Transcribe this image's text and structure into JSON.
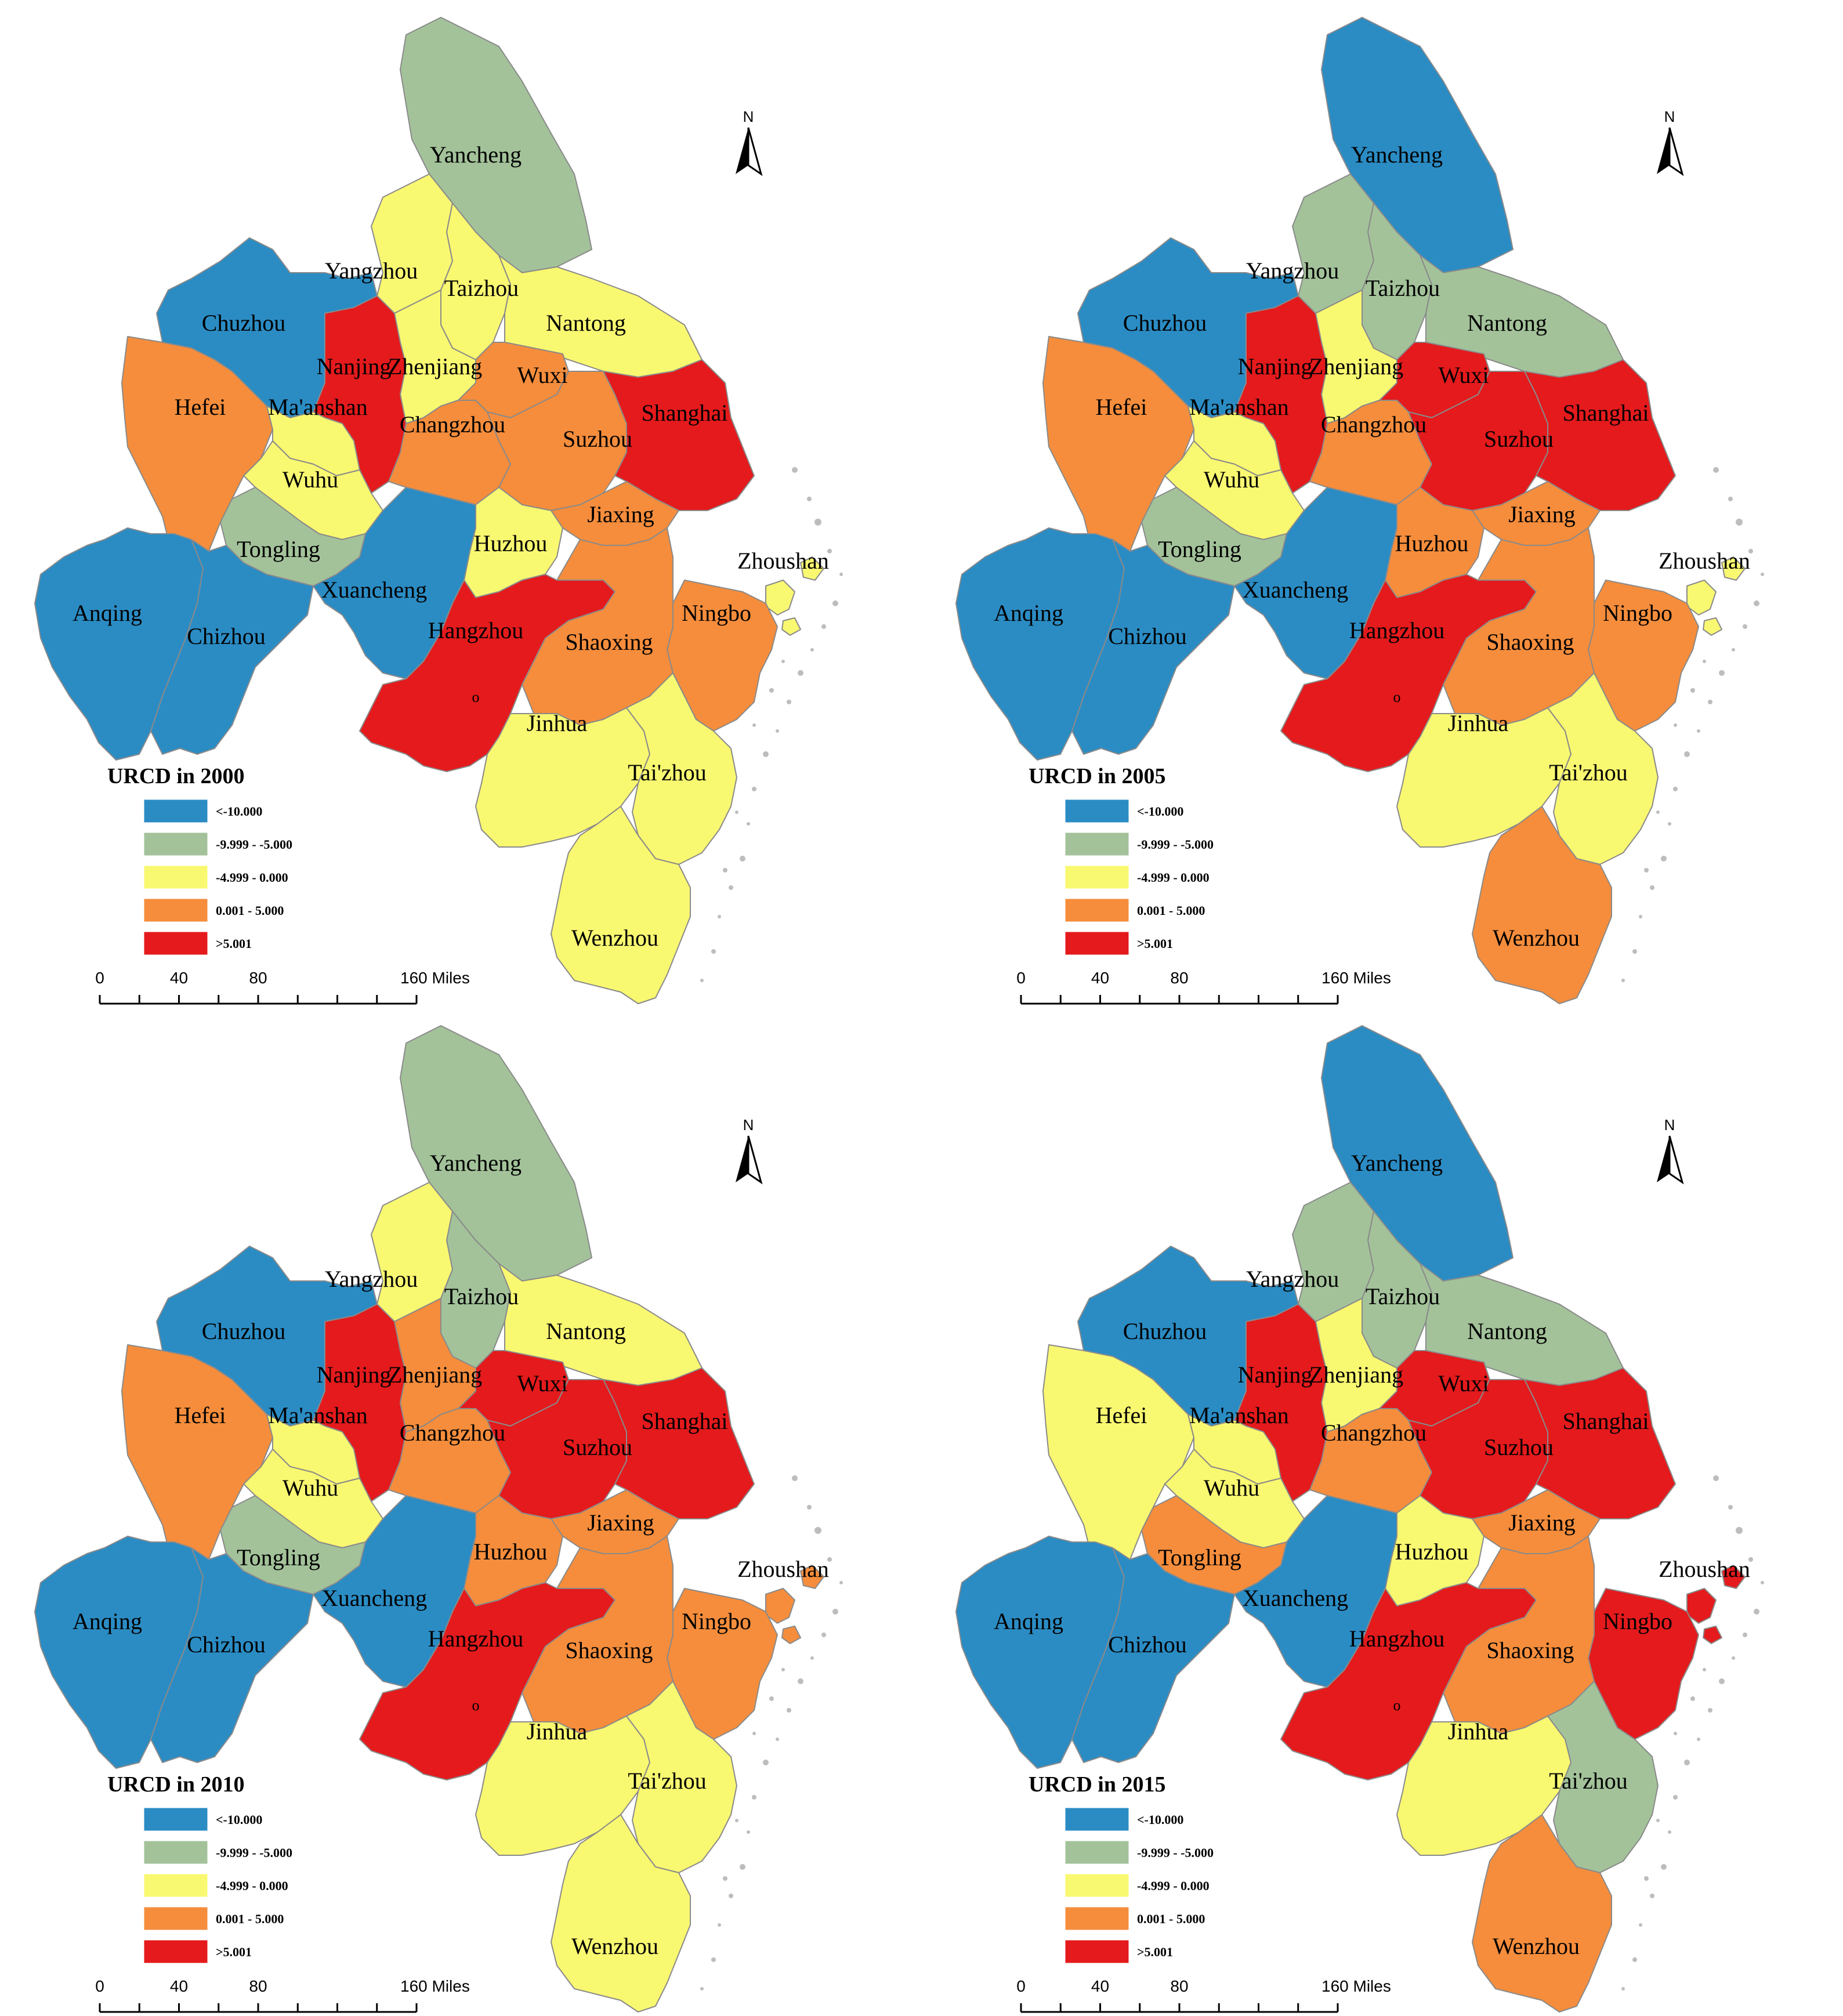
{
  "colors": {
    "c1": "#2b8cc4",
    "c2": "#a3c29a",
    "c3": "#f9f871",
    "c4": "#f58d3c",
    "c5": "#e41a1c"
  },
  "legend": {
    "classes": [
      {
        "key": "c1",
        "label": "<-10.000"
      },
      {
        "key": "c2",
        "label": "-9.999 - -5.000"
      },
      {
        "key": "c3",
        "label": "-4.999 - 0.000"
      },
      {
        "key": "c4",
        "label": "0.001 - 5.000"
      },
      {
        "key": "c5",
        "label": ">5.001"
      }
    ]
  },
  "scale": {
    "ticks": [
      "0",
      "40",
      "80",
      "160 Miles"
    ]
  },
  "north_label": "N",
  "marker_label": "o",
  "cities": [
    "Yancheng",
    "Yangzhou",
    "Taizhou",
    "Nantong",
    "Chuzhou",
    "Nanjing",
    "Zhenjiang",
    "Wuxi",
    "Hefei",
    "Ma'anshan",
    "Changzhou",
    "Suzhou",
    "Shanghai",
    "Wuhu",
    "Tongling",
    "Jiaxing",
    "Huzhou",
    "Zhoushan",
    "Anqing",
    "Chizhou",
    "Xuancheng",
    "Hangzhou",
    "Ningbo",
    "Shaoxing",
    "Jinhua",
    "Tai'zhou",
    "Wenzhou"
  ],
  "maps": [
    {
      "title": "URCD in 2000",
      "classes": {
        "Yancheng": "c2",
        "Yangzhou": "c3",
        "Taizhou": "c3",
        "Nantong": "c3",
        "Chuzhou": "c1",
        "Nanjing": "c5",
        "Zhenjiang": "c3",
        "Wuxi": "c4",
        "Hefei": "c4",
        "Ma'anshan": "c3",
        "Changzhou": "c4",
        "Suzhou": "c4",
        "Shanghai": "c5",
        "Wuhu": "c3",
        "Tongling": "c2",
        "Jiaxing": "c4",
        "Huzhou": "c3",
        "Zhoushan": "c3",
        "Anqing": "c1",
        "Chizhou": "c1",
        "Xuancheng": "c1",
        "Hangzhou": "c5",
        "Ningbo": "c4",
        "Shaoxing": "c4",
        "Jinhua": "c3",
        "Tai'zhou": "c3",
        "Wenzhou": "c3"
      }
    },
    {
      "title": "URCD in 2005",
      "classes": {
        "Yancheng": "c1",
        "Yangzhou": "c2",
        "Taizhou": "c2",
        "Nantong": "c2",
        "Chuzhou": "c1",
        "Nanjing": "c5",
        "Zhenjiang": "c3",
        "Wuxi": "c5",
        "Hefei": "c4",
        "Ma'anshan": "c3",
        "Changzhou": "c4",
        "Suzhou": "c5",
        "Shanghai": "c5",
        "Wuhu": "c3",
        "Tongling": "c2",
        "Jiaxing": "c4",
        "Huzhou": "c4",
        "Zhoushan": "c3",
        "Anqing": "c1",
        "Chizhou": "c1",
        "Xuancheng": "c1",
        "Hangzhou": "c5",
        "Ningbo": "c4",
        "Shaoxing": "c4",
        "Jinhua": "c3",
        "Tai'zhou": "c3",
        "Wenzhou": "c4"
      }
    },
    {
      "title": "URCD in 2010",
      "classes": {
        "Yancheng": "c2",
        "Yangzhou": "c3",
        "Taizhou": "c2",
        "Nantong": "c3",
        "Chuzhou": "c1",
        "Nanjing": "c5",
        "Zhenjiang": "c4",
        "Wuxi": "c5",
        "Hefei": "c4",
        "Ma'anshan": "c3",
        "Changzhou": "c4",
        "Suzhou": "c5",
        "Shanghai": "c5",
        "Wuhu": "c3",
        "Tongling": "c2",
        "Jiaxing": "c4",
        "Huzhou": "c4",
        "Zhoushan": "c4",
        "Anqing": "c1",
        "Chizhou": "c1",
        "Xuancheng": "c1",
        "Hangzhou": "c5",
        "Ningbo": "c4",
        "Shaoxing": "c4",
        "Jinhua": "c3",
        "Tai'zhou": "c3",
        "Wenzhou": "c3"
      }
    },
    {
      "title": "URCD in 2015",
      "classes": {
        "Yancheng": "c1",
        "Yangzhou": "c2",
        "Taizhou": "c2",
        "Nantong": "c2",
        "Chuzhou": "c1",
        "Nanjing": "c5",
        "Zhenjiang": "c3",
        "Wuxi": "c5",
        "Hefei": "c3",
        "Ma'anshan": "c3",
        "Changzhou": "c4",
        "Suzhou": "c5",
        "Shanghai": "c5",
        "Wuhu": "c3",
        "Tongling": "c4",
        "Jiaxing": "c4",
        "Huzhou": "c3",
        "Zhoushan": "c5",
        "Anqing": "c1",
        "Chizhou": "c1",
        "Xuancheng": "c1",
        "Hangzhou": "c5",
        "Ningbo": "c5",
        "Shaoxing": "c4",
        "Jinhua": "c3",
        "Tai'zhou": "c2",
        "Wenzhou": "c4"
      }
    }
  ]
}
